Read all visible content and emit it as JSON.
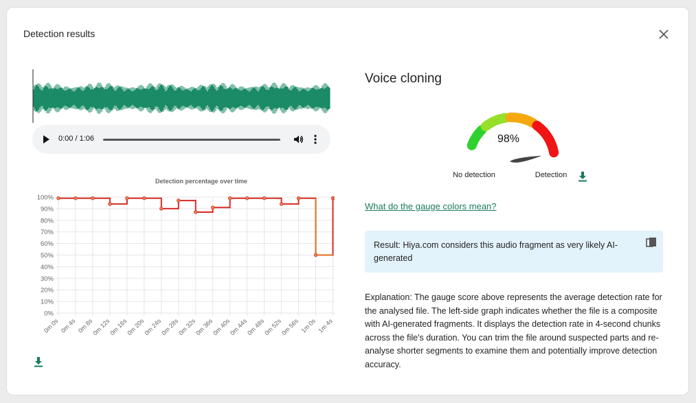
{
  "dialog": {
    "title": "Detection results",
    "close_icon": "close-icon"
  },
  "player": {
    "time": "0:00 / 1:06",
    "play_icon": "play-icon",
    "volume_icon": "volume-icon",
    "more_icon": "more-vert-icon"
  },
  "colors": {
    "waveform": "#1b8a66",
    "line": "#d62a24",
    "line_highlight": "#e06d1e",
    "accent": "#1a7a5e",
    "result_bg": "#e3f3fb"
  },
  "chart_data": {
    "type": "line",
    "title": "Detection percentage over time",
    "x": [
      "0m 0s",
      "0m 4s",
      "0m 8s",
      "0m 12s",
      "0m 16s",
      "0m 20s",
      "0m 24s",
      "0m 28s",
      "0m 32s",
      "0m 36s",
      "0m 40s",
      "0m 44s",
      "0m 48s",
      "0m 52s",
      "0m 56s",
      "1m 0s",
      "1m 4s"
    ],
    "series": [
      {
        "values": [
          99,
          99,
          99,
          94,
          99,
          99,
          90,
          97,
          87,
          91,
          99,
          99,
          99,
          94,
          99,
          50,
          99
        ]
      }
    ],
    "ylim": [
      0,
      100
    ],
    "yticks": [
      "0%",
      "10%",
      "20%",
      "30%",
      "40%",
      "50%",
      "60%",
      "70%",
      "80%",
      "90%",
      "100%"
    ],
    "step": true,
    "grid": true
  },
  "download_icon": "download-icon",
  "verdict": {
    "title": "Voice cloning",
    "score": 98,
    "score_label": "98%",
    "label_low": "No detection",
    "label_high": "Detection",
    "gauge_colors": [
      "#2fd12f",
      "#96e02a",
      "#f5a90f",
      "#f01414"
    ],
    "link": "What do the gauge colors mean?",
    "result": "Result: Hiya.com considers this audio fragment as very likely AI-generated",
    "copy_icon": "copy-icon",
    "explanation": "Explanation: The gauge score above represents the average detection rate for the analysed file. The left-side graph indicates whether the file is a composite with AI-generated fragments. It displays the detection rate in 4-second chunks across the file's duration. You can trim the file around suspected parts and re-analyse shorter segments to examine them and potentially improve detection accuracy."
  }
}
